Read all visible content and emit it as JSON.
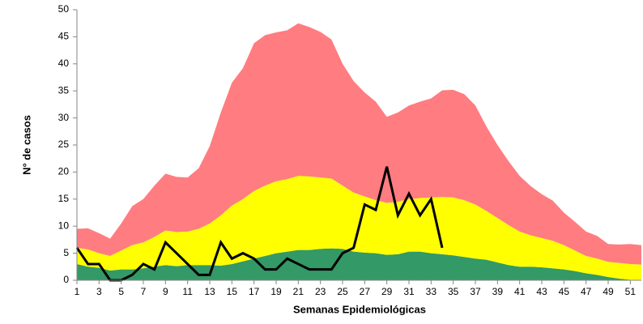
{
  "chart_data": {
    "type": "area",
    "stacked": true,
    "xlabel": "Semanas Epidemiológicas",
    "ylabel": "N° de casos",
    "x": [
      1,
      2,
      3,
      4,
      5,
      6,
      7,
      8,
      9,
      10,
      11,
      12,
      13,
      14,
      15,
      16,
      17,
      18,
      19,
      20,
      21,
      22,
      23,
      24,
      25,
      26,
      27,
      28,
      29,
      30,
      31,
      32,
      33,
      34,
      35,
      36,
      37,
      38,
      39,
      40,
      41,
      42,
      43,
      44,
      45,
      46,
      47,
      48,
      49,
      50,
      51,
      52
    ],
    "xlim": [
      1,
      52
    ],
    "xticks": [
      1,
      3,
      5,
      7,
      9,
      11,
      13,
      15,
      17,
      19,
      21,
      23,
      25,
      27,
      29,
      31,
      33,
      35,
      37,
      39,
      41,
      43,
      45,
      47,
      49,
      51
    ],
    "ylim": [
      0,
      50
    ],
    "yticks": [
      0,
      5,
      10,
      15,
      20,
      25,
      30,
      35,
      40,
      45,
      50
    ],
    "grid": false,
    "series": [
      {
        "type": "area",
        "color": "#339966",
        "values": [
          3,
          2.5,
          2.3,
          1.8,
          2,
          2,
          2.2,
          2.5,
          2.8,
          2.6,
          2.8,
          2.8,
          2.8,
          2.7,
          3,
          3.5,
          4,
          4.5,
          5,
          5.3,
          5.6,
          5.6,
          5.8,
          5.9,
          5.8,
          5.3,
          5.1,
          5,
          4.7,
          4.8,
          5.3,
          5.3,
          5,
          4.8,
          4.6,
          4.3,
          4,
          3.8,
          3.3,
          2.8,
          2.5,
          2.5,
          2.4,
          2.2,
          2,
          1.7,
          1.3,
          1,
          0.6,
          0.3,
          0.1,
          0
        ]
      },
      {
        "type": "area",
        "color": "#ffff00",
        "values": [
          3,
          3.2,
          2.7,
          2.7,
          3.5,
          4.5,
          4.8,
          5.5,
          6.4,
          6.3,
          6.2,
          6.7,
          7.7,
          9.3,
          10.8,
          11.5,
          12.5,
          13,
          13.3,
          13.4,
          13.7,
          13.6,
          13.2,
          12.9,
          11.7,
          10.9,
          10.4,
          9.8,
          9.6,
          9.7,
          9.7,
          9.9,
          10.3,
          10.6,
          10.7,
          10.5,
          10,
          9,
          8.2,
          7.4,
          6.5,
          5.8,
          5.4,
          5.1,
          4.5,
          3.8,
          3.2,
          3,
          2.8,
          2.9,
          2.9,
          2.9
        ]
      },
      {
        "type": "area",
        "color": "#ff7c80",
        "values": [
          3.5,
          3.9,
          3.7,
          3.2,
          5,
          7.2,
          8,
          9.5,
          10.5,
          10.2,
          10,
          11.2,
          14.3,
          19,
          22.7,
          24.2,
          27.3,
          27.8,
          27.5,
          27.5,
          28.2,
          27.6,
          26.9,
          25.7,
          22.5,
          20.6,
          19.2,
          18.2,
          15.9,
          16.5,
          17.3,
          17.8,
          18.3,
          19.7,
          19.9,
          19.6,
          18.3,
          15.6,
          13.5,
          11.8,
          10.3,
          9.1,
          8.1,
          7.4,
          6,
          5.3,
          4.5,
          4.2,
          3.3,
          3.4,
          3.7,
          3.6
        ]
      },
      {
        "type": "line",
        "color": "#000000",
        "values": [
          6,
          3,
          3,
          0,
          0,
          1,
          3,
          2,
          7,
          5,
          3,
          1,
          1,
          7,
          4,
          5,
          4,
          2,
          2,
          4,
          3,
          2,
          2,
          2,
          5,
          6,
          14,
          13,
          21,
          12,
          16,
          12,
          15,
          6,
          null,
          null,
          null,
          null,
          null,
          null,
          null,
          null,
          null,
          null,
          null,
          null,
          null,
          null,
          null,
          null,
          null,
          null
        ]
      }
    ]
  }
}
